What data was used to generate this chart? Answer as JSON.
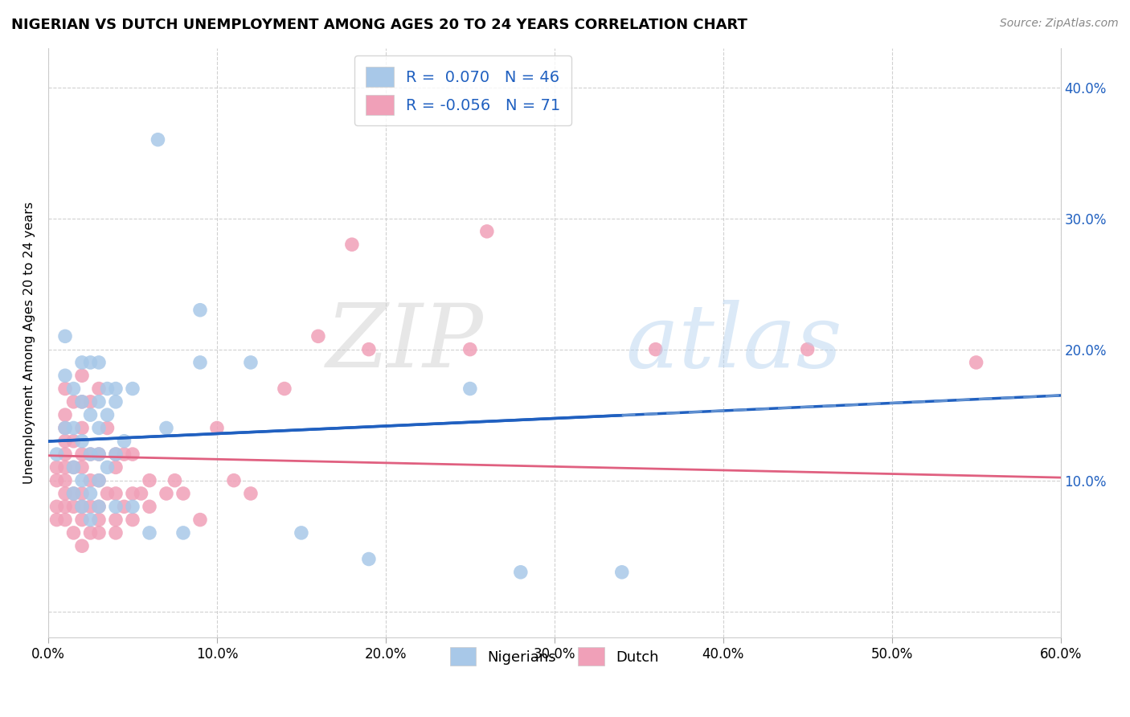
{
  "title": "NIGERIAN VS DUTCH UNEMPLOYMENT AMONG AGES 20 TO 24 YEARS CORRELATION CHART",
  "source": "Source: ZipAtlas.com",
  "ylabel": "Unemployment Among Ages 20 to 24 years",
  "xlim": [
    0,
    0.6
  ],
  "ylim": [
    -0.02,
    0.43
  ],
  "xtick_vals": [
    0.0,
    0.1,
    0.2,
    0.3,
    0.4,
    0.5,
    0.6
  ],
  "xtick_labels": [
    "0.0%",
    "10.0%",
    "20.0%",
    "30.0%",
    "40.0%",
    "50.0%",
    "60.0%"
  ],
  "ytick_vals": [
    0.0,
    0.1,
    0.2,
    0.3,
    0.4
  ],
  "ytick_labels_right": [
    "",
    "10.0%",
    "20.0%",
    "30.0%",
    "40.0%"
  ],
  "nigerian_R": 0.07,
  "nigerian_N": 46,
  "dutch_R": -0.056,
  "dutch_N": 71,
  "nigerian_color": "#a8c8e8",
  "dutch_color": "#f0a0b8",
  "nigerian_line_color": "#2060c0",
  "dutch_line_color": "#e06080",
  "dutch_dash_color": "#6090d0",
  "legend_color": "#2060c0",
  "nigerian_x": [
    0.005,
    0.01,
    0.01,
    0.01,
    0.015,
    0.015,
    0.015,
    0.015,
    0.02,
    0.02,
    0.02,
    0.02,
    0.02,
    0.025,
    0.025,
    0.025,
    0.025,
    0.025,
    0.03,
    0.03,
    0.03,
    0.03,
    0.03,
    0.03,
    0.035,
    0.035,
    0.035,
    0.04,
    0.04,
    0.04,
    0.04,
    0.045,
    0.05,
    0.05,
    0.06,
    0.065,
    0.07,
    0.08,
    0.09,
    0.09,
    0.12,
    0.15,
    0.19,
    0.25,
    0.28,
    0.34
  ],
  "nigerian_y": [
    0.12,
    0.14,
    0.18,
    0.21,
    0.09,
    0.11,
    0.14,
    0.17,
    0.08,
    0.1,
    0.13,
    0.16,
    0.19,
    0.07,
    0.09,
    0.12,
    0.15,
    0.19,
    0.08,
    0.1,
    0.12,
    0.14,
    0.16,
    0.19,
    0.11,
    0.15,
    0.17,
    0.08,
    0.12,
    0.16,
    0.17,
    0.13,
    0.08,
    0.17,
    0.06,
    0.36,
    0.14,
    0.06,
    0.19,
    0.23,
    0.19,
    0.06,
    0.04,
    0.17,
    0.03,
    0.03
  ],
  "dutch_x": [
    0.005,
    0.005,
    0.005,
    0.005,
    0.01,
    0.01,
    0.01,
    0.01,
    0.01,
    0.01,
    0.01,
    0.01,
    0.01,
    0.01,
    0.015,
    0.015,
    0.015,
    0.015,
    0.015,
    0.015,
    0.02,
    0.02,
    0.02,
    0.02,
    0.02,
    0.02,
    0.02,
    0.02,
    0.02,
    0.025,
    0.025,
    0.025,
    0.025,
    0.025,
    0.03,
    0.03,
    0.03,
    0.03,
    0.03,
    0.03,
    0.035,
    0.035,
    0.04,
    0.04,
    0.04,
    0.04,
    0.04,
    0.045,
    0.045,
    0.05,
    0.05,
    0.05,
    0.055,
    0.06,
    0.06,
    0.07,
    0.075,
    0.08,
    0.09,
    0.1,
    0.11,
    0.12,
    0.14,
    0.16,
    0.18,
    0.19,
    0.25,
    0.26,
    0.36,
    0.45,
    0.55
  ],
  "dutch_y": [
    0.07,
    0.08,
    0.1,
    0.11,
    0.07,
    0.08,
    0.09,
    0.1,
    0.11,
    0.12,
    0.13,
    0.14,
    0.15,
    0.17,
    0.06,
    0.08,
    0.09,
    0.11,
    0.13,
    0.16,
    0.05,
    0.07,
    0.08,
    0.09,
    0.11,
    0.12,
    0.14,
    0.16,
    0.18,
    0.06,
    0.08,
    0.1,
    0.12,
    0.16,
    0.06,
    0.07,
    0.08,
    0.1,
    0.12,
    0.17,
    0.09,
    0.14,
    0.06,
    0.07,
    0.09,
    0.11,
    0.12,
    0.08,
    0.12,
    0.07,
    0.09,
    0.12,
    0.09,
    0.08,
    0.1,
    0.09,
    0.1,
    0.09,
    0.07,
    0.14,
    0.1,
    0.09,
    0.17,
    0.21,
    0.28,
    0.2,
    0.2,
    0.29,
    0.2,
    0.2,
    0.19
  ]
}
